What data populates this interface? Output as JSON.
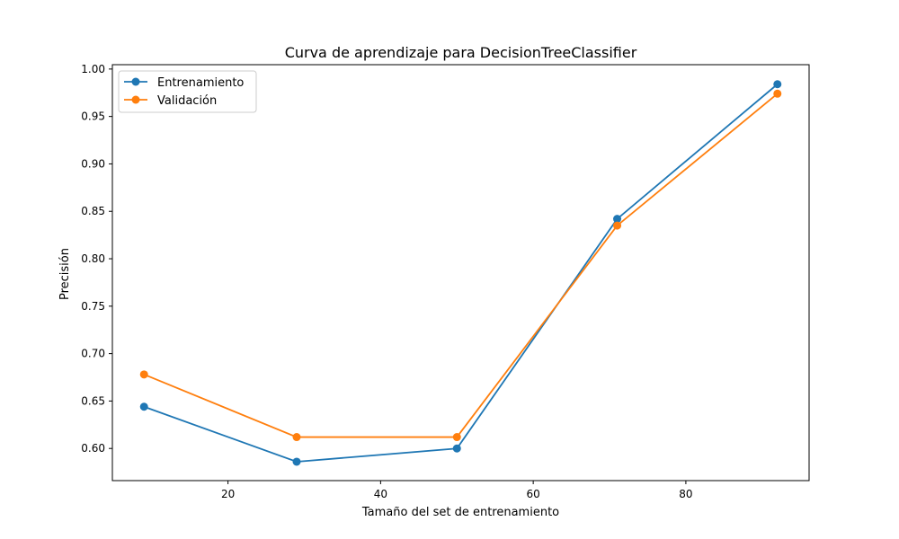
{
  "chart_data": {
    "type": "line",
    "title": "Curva de aprendizaje para DecisionTreeClassifier",
    "xlabel": "Tamaño del set de entrenamiento",
    "ylabel": "Precisión",
    "xlim": [
      4.85,
      96.15
    ],
    "ylim": [
      0.5661,
      1.0046
    ],
    "xticks": [
      20,
      40,
      60,
      80
    ],
    "xtick_labels": [
      "20",
      "40",
      "60",
      "80"
    ],
    "yticks": [
      0.6,
      0.65,
      0.7,
      0.75,
      0.8,
      0.85,
      0.9,
      0.95,
      1.0
    ],
    "ytick_labels": [
      "0.60",
      "0.65",
      "0.70",
      "0.75",
      "0.80",
      "0.85",
      "0.90",
      "0.95",
      "1.00"
    ],
    "grid": false,
    "legend_position": "top-left",
    "x": [
      9,
      29,
      50,
      71,
      92
    ],
    "series": [
      {
        "name": "Entrenamiento",
        "color": "#1f77b4",
        "marker": "circle",
        "values": [
          0.644,
          0.586,
          0.6,
          0.842,
          0.984
        ]
      },
      {
        "name": "Validación",
        "color": "#ff7f0e",
        "marker": "circle",
        "values": [
          0.678,
          0.612,
          0.612,
          0.835,
          0.974
        ]
      }
    ]
  }
}
